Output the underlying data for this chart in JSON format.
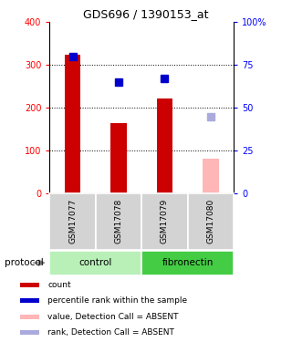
{
  "title": "GDS696 / 1390153_at",
  "samples": [
    "GSM17077",
    "GSM17078",
    "GSM17079",
    "GSM17080"
  ],
  "bar_values": [
    325,
    163,
    222,
    80
  ],
  "bar_colors": [
    "#cc0000",
    "#cc0000",
    "#cc0000",
    "#ffb6b6"
  ],
  "rank_values": [
    80,
    65,
    67,
    45
  ],
  "rank_colors": [
    "#0000cc",
    "#0000cc",
    "#0000cc",
    "#aaaadd"
  ],
  "ylim_left": [
    0,
    400
  ],
  "ylim_right": [
    0,
    100
  ],
  "yticks_left": [
    0,
    100,
    200,
    300,
    400
  ],
  "ytick_labels_left": [
    "0",
    "100",
    "200",
    "300",
    "400"
  ],
  "yticks_right": [
    0,
    25,
    50,
    75,
    100
  ],
  "ytick_labels_right": [
    "0",
    "25",
    "50",
    "75",
    "100%"
  ],
  "grid_values": [
    100,
    200,
    300
  ],
  "protocols": [
    {
      "label": "control",
      "samples": [
        0,
        1
      ],
      "color": "#b8f0b8"
    },
    {
      "label": "fibronectin",
      "samples": [
        2,
        3
      ],
      "color": "#44cc44"
    }
  ],
  "protocol_label": "protocol",
  "legend_items": [
    {
      "label": "count",
      "color": "#cc0000"
    },
    {
      "label": "percentile rank within the sample",
      "color": "#0000cc"
    },
    {
      "label": "value, Detection Call = ABSENT",
      "color": "#ffb6b6"
    },
    {
      "label": "rank, Detection Call = ABSENT",
      "color": "#aaaadd"
    }
  ],
  "bar_width": 0.35,
  "marker_size": 6,
  "fig_width": 3.2,
  "fig_height": 3.75,
  "dpi": 100
}
